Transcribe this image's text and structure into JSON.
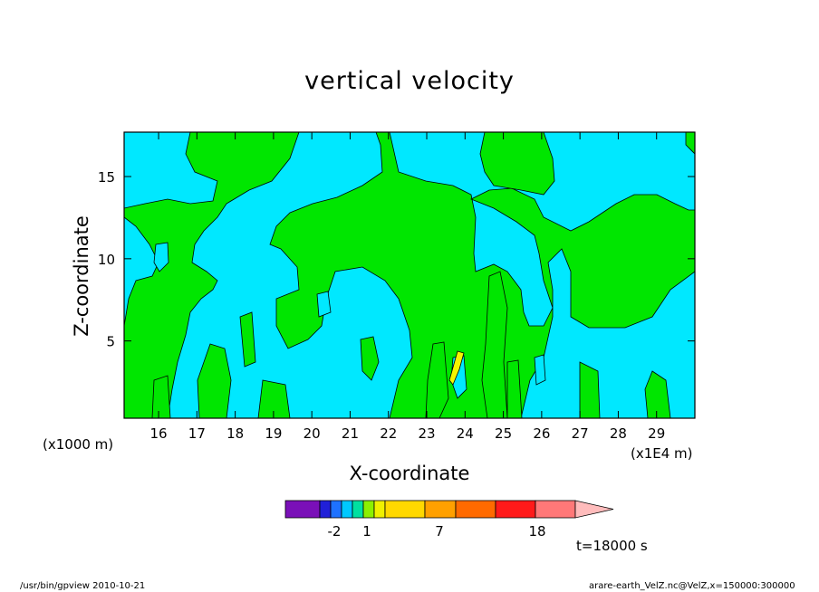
{
  "chart_data": {
    "type": "heatmap",
    "title": "vertical velocity",
    "xlabel": "X-coordinate",
    "ylabel": "Z-coordinate",
    "x_ticks": [
      16,
      17,
      18,
      19,
      20,
      21,
      22,
      23,
      24,
      25,
      26,
      27,
      28,
      29
    ],
    "y_ticks": [
      5,
      10,
      15
    ],
    "x_unit_left": "(x1000 m)",
    "x_unit_right": "(x1E4 m)",
    "xlim": [
      15.1,
      30.0
    ],
    "ylim": [
      0.3,
      17.7
    ],
    "colorbar": {
      "colors": [
        "#7a10b8",
        "#2020d8",
        "#1e72ff",
        "#00c8ff",
        "#00e0a0",
        "#8cf000",
        "#f0f000",
        "#ffd800",
        "#ffa000",
        "#ff6a00",
        "#ff1a1a",
        "#ff7878",
        "#ffbcbc"
      ],
      "labels": [
        "-2",
        "1",
        "7",
        "18"
      ]
    },
    "time_label": "t=18000 s",
    "footer_left": "/usr/bin/gpview   2010-10-21",
    "footer_right": "arare-earth_VelZ.nc@VelZ,x=150000:300000"
  }
}
